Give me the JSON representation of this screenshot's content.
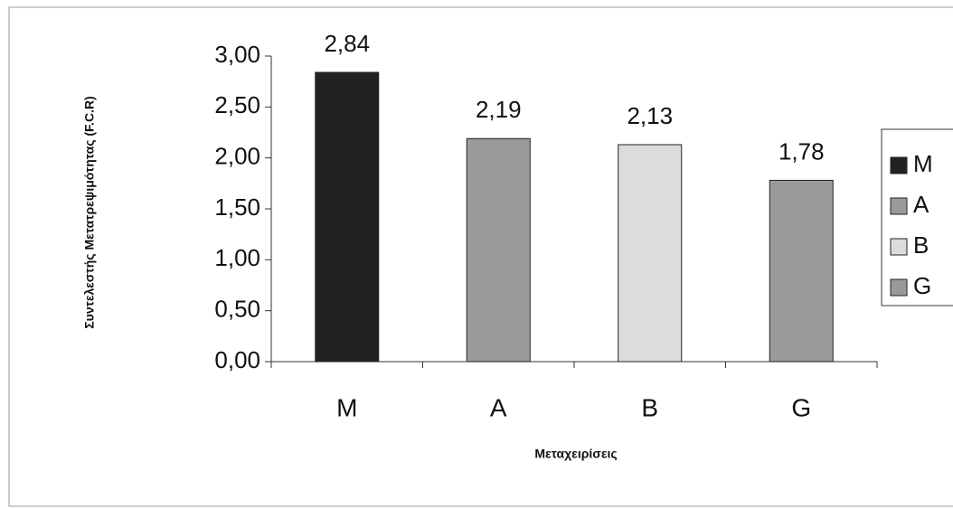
{
  "chart_data": {
    "type": "bar",
    "y_axis_label": "Συντελεστής Μετατρεψιμότητας (F.C.R)",
    "x_axis_label": "Μεταχειρίσεις",
    "categories": [
      "M",
      "A",
      "B",
      "G"
    ],
    "series": [
      {
        "name": "M",
        "color": "#222222",
        "values": [
          2.84,
          null,
          null,
          null
        ],
        "value_labels": [
          "2,84",
          null,
          null,
          null
        ]
      },
      {
        "name": "A",
        "color": "#9a9a9a",
        "values": [
          null,
          2.19,
          null,
          null
        ],
        "value_labels": [
          null,
          "2,19",
          null,
          null
        ]
      },
      {
        "name": "B",
        "color": "#dcdcdc",
        "values": [
          null,
          null,
          2.13,
          null
        ],
        "value_labels": [
          null,
          null,
          "2,13",
          null
        ]
      },
      {
        "name": "G",
        "color": "#9a9a9a",
        "values": [
          null,
          null,
          null,
          1.78
        ],
        "value_labels": [
          null,
          null,
          null,
          "1,78"
        ]
      }
    ],
    "ylim": [
      0,
      3
    ],
    "yticks": [
      {
        "value": 0,
        "label": "0,00"
      },
      {
        "value": 0.5,
        "label": "0,50"
      },
      {
        "value": 1,
        "label": "1,00"
      },
      {
        "value": 1.5,
        "label": "1,50"
      },
      {
        "value": 2,
        "label": "2,00"
      },
      {
        "value": 2.5,
        "label": "2,50"
      },
      {
        "value": 3,
        "label": "3,00"
      }
    ],
    "legend": "right"
  }
}
